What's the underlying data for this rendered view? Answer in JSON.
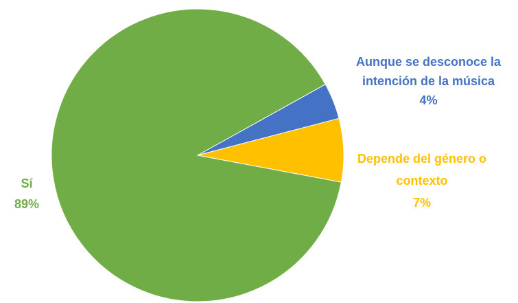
{
  "chart_data": {
    "type": "pie",
    "categories": [
      "Aunque se desconoce la intención de la música",
      "Depende del género o contexto",
      "Sí"
    ],
    "values": [
      4,
      7,
      89
    ],
    "value_labels": [
      "4%",
      "7%",
      "89%"
    ],
    "colors": [
      "#4472c4",
      "#ffc000",
      "#70ad47"
    ]
  }
}
